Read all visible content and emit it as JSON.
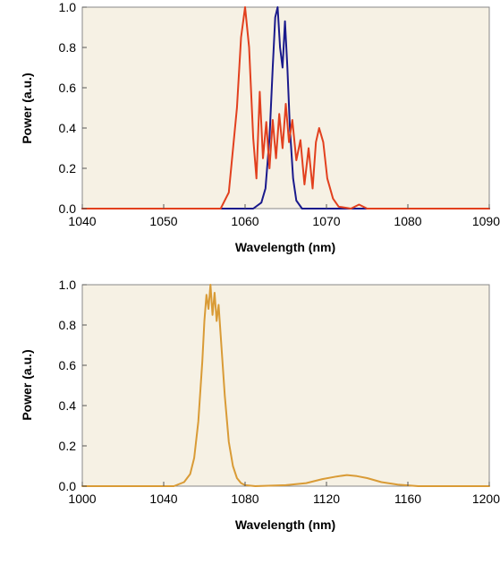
{
  "chart_data": [
    {
      "type": "line",
      "xlabel": "Wavelength (nm)",
      "ylabel": "Power (a.u.)",
      "xlim": [
        1040,
        1090
      ],
      "ylim": [
        0,
        1.0
      ],
      "xticks": [
        1040,
        1050,
        1060,
        1070,
        1080,
        1090
      ],
      "yticks": [
        0.0,
        0.2,
        0.4,
        0.6,
        0.8,
        1.0
      ],
      "xtick_labels": [
        "1040",
        "1050",
        "1060",
        "1070",
        "1080",
        "1090"
      ],
      "ytick_labels": [
        "0.0",
        "0.2",
        "0.4",
        "0.6",
        "0.8",
        "1.0"
      ],
      "grid": false,
      "background_color": "#f6f1e4",
      "series": [
        {
          "color": "#1a1a8c",
          "x": [
            1040,
            1061,
            1062,
            1062.5,
            1063,
            1063.4,
            1063.7,
            1064.0,
            1064.3,
            1064.6,
            1064.9,
            1065.2,
            1065.5,
            1065.9,
            1066.3,
            1067,
            1090
          ],
          "y": [
            0,
            0,
            0.03,
            0.1,
            0.35,
            0.7,
            0.95,
            1.0,
            0.8,
            0.7,
            0.93,
            0.7,
            0.4,
            0.15,
            0.04,
            0,
            0
          ]
        },
        {
          "color": "#e2401e",
          "x": [
            1040,
            1057,
            1058,
            1059,
            1059.5,
            1060,
            1060.5,
            1061,
            1061.4,
            1061.8,
            1062.2,
            1062.6,
            1063.0,
            1063.4,
            1063.8,
            1064.2,
            1064.6,
            1065.0,
            1065.4,
            1065.8,
            1066.3,
            1066.8,
            1067.3,
            1067.8,
            1068.3,
            1068.7,
            1069.1,
            1069.6,
            1070.1,
            1070.8,
            1071.5,
            1073,
            1074,
            1075,
            1090
          ],
          "y": [
            0,
            0,
            0.08,
            0.5,
            0.85,
            1.0,
            0.8,
            0.35,
            0.15,
            0.58,
            0.25,
            0.43,
            0.2,
            0.44,
            0.25,
            0.47,
            0.3,
            0.52,
            0.33,
            0.44,
            0.24,
            0.34,
            0.12,
            0.3,
            0.1,
            0.33,
            0.4,
            0.33,
            0.15,
            0.05,
            0.01,
            0,
            0.02,
            0,
            0
          ]
        }
      ]
    },
    {
      "type": "line",
      "xlabel": "Wavelength (nm)",
      "ylabel": "Power (a.u.)",
      "xlim": [
        1000,
        1200
      ],
      "ylim": [
        0,
        1.0
      ],
      "xticks": [
        1000,
        1040,
        1080,
        1120,
        1160,
        1200
      ],
      "yticks": [
        0.0,
        0.2,
        0.4,
        0.6,
        0.8,
        1.0
      ],
      "xtick_labels": [
        "1000",
        "1040",
        "1080",
        "1120",
        "1160",
        "1200"
      ],
      "ytick_labels": [
        "0.0",
        "0.2",
        "0.4",
        "0.6",
        "0.8",
        "1.0"
      ],
      "grid": false,
      "background_color": "#f6f1e4",
      "series": [
        {
          "color": "#d99b36",
          "x": [
            1000,
            1045,
            1050,
            1053,
            1055,
            1057,
            1059,
            1060,
            1061,
            1062,
            1063,
            1064,
            1065,
            1066,
            1067,
            1068,
            1069,
            1070,
            1072,
            1074,
            1076,
            1078,
            1080,
            1085,
            1100,
            1110,
            1118,
            1125,
            1130,
            1135,
            1140,
            1147,
            1155,
            1165,
            1200
          ],
          "y": [
            0,
            0,
            0.02,
            0.06,
            0.14,
            0.32,
            0.62,
            0.82,
            0.95,
            0.88,
            1.0,
            0.85,
            0.96,
            0.82,
            0.9,
            0.75,
            0.6,
            0.45,
            0.22,
            0.1,
            0.04,
            0.015,
            0.005,
            0,
            0.005,
            0.015,
            0.035,
            0.048,
            0.055,
            0.05,
            0.04,
            0.02,
            0.008,
            0,
            0
          ]
        }
      ]
    }
  ]
}
